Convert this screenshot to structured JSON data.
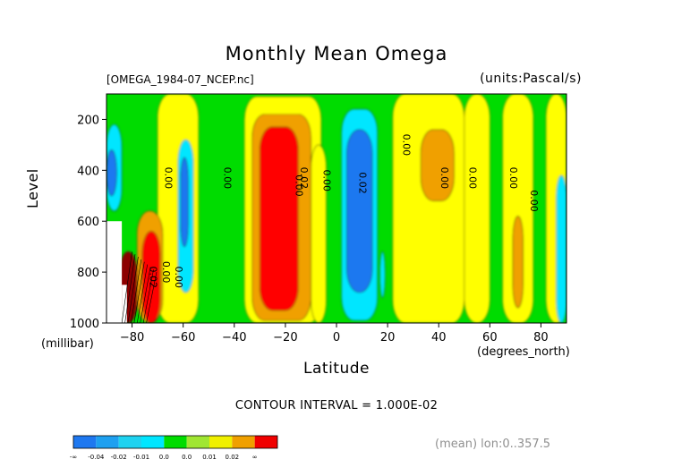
{
  "title": "Monthly Mean Omega",
  "file_label": "[OMEGA_1984-07_NCEP.nc]",
  "units_label": "(units:Pascal/s)",
  "ylabel": "Level",
  "yunit": "(millibar)",
  "xlabel": "Latitude",
  "xunit": "(degrees_north)",
  "contour_interval": "CONTOUR INTERVAL = 1.000E-02",
  "footer_note": "(mean) lon:0..357.5",
  "chart_data": {
    "type": "heatmap",
    "title": "Monthly Mean Omega",
    "xlabel": "Latitude",
    "ylabel": "Level",
    "xlim": [
      -90,
      90
    ],
    "ylim": [
      1000,
      100
    ],
    "x_ticks": [
      "-80",
      "-60",
      "-40",
      "-20",
      "0",
      "20",
      "40",
      "60",
      "80"
    ],
    "y_ticks": [
      "200",
      "400",
      "600",
      "800",
      "1000"
    ],
    "grid": false,
    "contour_labels": [
      "0.00",
      "0.02",
      "0.00",
      "0.00",
      "0.02",
      "0.00",
      "0.00",
      "0.00",
      "0.00",
      "0.00",
      "0.00",
      "0.00",
      "0.02",
      "0.00"
    ],
    "colorbar": {
      "labels": [
        "-∞",
        "-0.04",
        "-0.02",
        "-0.01",
        "0.0",
        "0.0",
        "0.01",
        "0.02",
        "∞"
      ],
      "colors": [
        "#1e78f0",
        "#1ea0f0",
        "#1ed2f0",
        "#00e6ff",
        "#00dc00",
        "#a0e632",
        "#f0f000",
        "#f0a000",
        "#f00000"
      ]
    },
    "level_colors": {
      "blue": "#1e78f0",
      "cyan": "#00e6ff",
      "green": "#00dc00",
      "yellow": "#ffff00",
      "orange": "#f0a000",
      "red": "#ff0000",
      "darkred": "#8c0000"
    },
    "regions": [
      {
        "level": "yellow",
        "lat": [
          -70,
          -54
        ],
        "p": [
          100,
          1000
        ]
      },
      {
        "level": "yellow",
        "lat": [
          -36,
          -6
        ],
        "p": [
          110,
          1000
        ]
      },
      {
        "level": "orange",
        "lat": [
          -33,
          -10
        ],
        "p": [
          180,
          990
        ]
      },
      {
        "level": "red",
        "lat": [
          -30,
          -15
        ],
        "p": [
          230,
          950
        ]
      },
      {
        "level": "yellow",
        "lat": [
          -10,
          -4
        ],
        "p": [
          300,
          1000
        ]
      },
      {
        "level": "yellow",
        "lat": [
          22,
          50
        ],
        "p": [
          100,
          1000
        ]
      },
      {
        "level": "orange",
        "lat": [
          33,
          46
        ],
        "p": [
          240,
          520
        ]
      },
      {
        "level": "yellow",
        "lat": [
          50,
          60
        ],
        "p": [
          100,
          1000
        ]
      },
      {
        "level": "yellow",
        "lat": [
          65,
          77
        ],
        "p": [
          100,
          1000
        ]
      },
      {
        "level": "orange",
        "lat": [
          69,
          73
        ],
        "p": [
          580,
          940
        ]
      },
      {
        "level": "yellow",
        "lat": [
          82,
          90
        ],
        "p": [
          100,
          1000
        ]
      },
      {
        "level": "cyan",
        "lat": [
          -90,
          -84
        ],
        "p": [
          220,
          560
        ]
      },
      {
        "level": "blue",
        "lat": [
          -90,
          -86
        ],
        "p": [
          320,
          500
        ]
      },
      {
        "level": "cyan",
        "lat": [
          -62,
          -56
        ],
        "p": [
          280,
          880
        ]
      },
      {
        "level": "blue",
        "lat": [
          -61,
          -58
        ],
        "p": [
          350,
          700
        ]
      },
      {
        "level": "cyan",
        "lat": [
          2,
          16
        ],
        "p": [
          160,
          990
        ]
      },
      {
        "level": "blue",
        "lat": [
          4,
          14
        ],
        "p": [
          240,
          880
        ]
      },
      {
        "level": "cyan",
        "lat": [
          17,
          19
        ],
        "p": [
          720,
          900
        ]
      },
      {
        "level": "cyan",
        "lat": [
          86,
          90
        ],
        "p": [
          420,
          1000
        ]
      },
      {
        "level": "orange",
        "lat": [
          -78,
          -68
        ],
        "p": [
          560,
          1000
        ]
      },
      {
        "level": "red",
        "lat": [
          -76,
          -69
        ],
        "p": [
          640,
          1000
        ]
      },
      {
        "level": "darkred",
        "lat": [
          -85,
          -78
        ],
        "p": [
          720,
          1000
        ]
      }
    ]
  }
}
